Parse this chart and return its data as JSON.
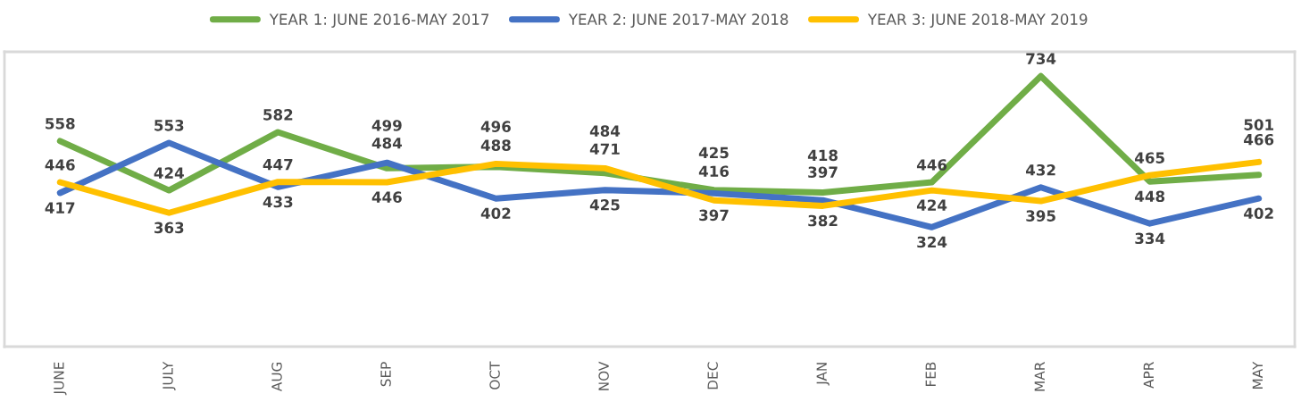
{
  "chart_data": {
    "type": "line",
    "categories": [
      "JUNE",
      "JULY",
      "AUG",
      "SEP",
      "OCT",
      "NOV",
      "DEC",
      "JAN",
      "FEB",
      "MAR",
      "APR",
      "MAY"
    ],
    "series": [
      {
        "name": "YEAR 1: JUNE 2016-MAY 2017",
        "color": "#70ad47",
        "values": [
          558,
          424,
          582,
          484,
          488,
          471,
          425,
          418,
          446,
          734,
          448,
          466
        ]
      },
      {
        "name": "YEAR 2: JUNE 2017-MAY 2018",
        "color": "#4472c4",
        "values": [
          417,
          553,
          433,
          499,
          402,
          425,
          416,
          397,
          324,
          432,
          334,
          402
        ]
      },
      {
        "name": "YEAR 3: JUNE 2018-MAY 2019",
        "color": "#ffc000",
        "values": [
          446,
          363,
          447,
          446,
          496,
          484,
          397,
          382,
          424,
          395,
          465,
          501
        ]
      }
    ],
    "ylim": [
      0,
      800
    ],
    "tick_labels": "x",
    "data_labels": true,
    "legend": "top",
    "grid": false,
    "marker": "none",
    "line_style": "solid"
  }
}
